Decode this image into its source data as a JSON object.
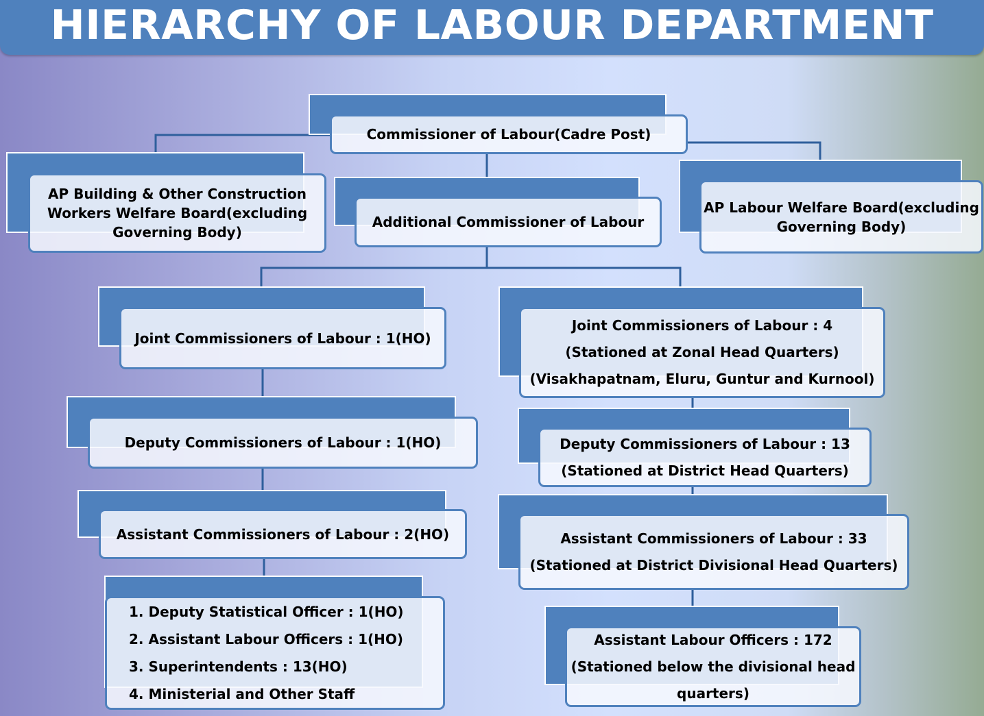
{
  "title": "HIERARCHY OF LABOUR DEPARTMENT",
  "colors": {
    "accent": "#4f81bd",
    "node_fill": "#f6f8fe",
    "title_text": "#ffffff",
    "connector": "#2f5f9c"
  },
  "nodes": {
    "commissioner": {
      "lines": [
        "Commissioner of Labour(Cadre Post)"
      ]
    },
    "ap_building_board": {
      "lines": [
        "AP Building & Other Construction",
        "Workers Welfare Board(excluding",
        "Governing Body)"
      ]
    },
    "additional_commissioner": {
      "lines": [
        "Additional Commissioner of Labour"
      ]
    },
    "ap_labour_welfare_board": {
      "lines": [
        "AP Labour Welfare Board(excluding",
        "Governing Body)"
      ]
    },
    "joint_ho": {
      "lines": [
        "Joint Commissioners of Labour : 1(HO)"
      ]
    },
    "joint_zonal": {
      "lines": [
        "Joint Commissioners of Labour : 4",
        "(Stationed at Zonal Head Quarters)",
        "(Visakhapatnam, Eluru, Guntur and Kurnool)"
      ]
    },
    "deputy_ho": {
      "lines": [
        "Deputy Commissioners of Labour  : 1(HO)"
      ]
    },
    "deputy_district": {
      "lines": [
        "Deputy Commissioners of  Labour : 13",
        "(Stationed at District Head Quarters)"
      ]
    },
    "assistant_ho": {
      "lines": [
        "Assistant Commissioners of Labour  : 2(HO)"
      ]
    },
    "assistant_divisional": {
      "lines": [
        "Assistant Commissioners of Labour : 33",
        "(Stationed at District Divisional Head Quarters)"
      ]
    },
    "ho_staff": {
      "lines": [
        "1. Deputy Statistical Officer : 1(HO)",
        "2. Assistant Labour Officers : 1(HO)",
        "3. Superintendents : 13(HO)",
        "4. Ministerial and Other Staff"
      ]
    },
    "labour_officers": {
      "lines": [
        "Assistant Labour Officers : 172",
        "(Stationed below the divisional head",
        "quarters)"
      ]
    }
  }
}
